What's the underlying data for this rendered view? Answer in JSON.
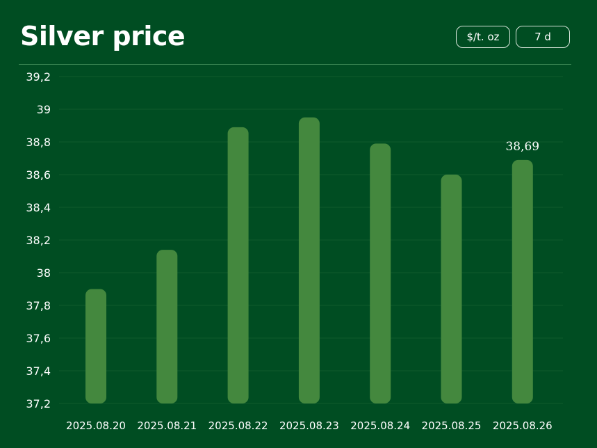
{
  "header": {
    "title": "Silver price",
    "unit_chip": "$/t. oz",
    "range_chip": "7 d"
  },
  "colors": {
    "background": "#004d22",
    "bar": "#44883e",
    "gridline": "#0f5a2c",
    "text": "#ffffff"
  },
  "chart_data": {
    "type": "bar",
    "title": "Silver price",
    "xlabel": "",
    "ylabel": "",
    "categories": [
      "2025.08.20",
      "2025.08.21",
      "2025.08.22",
      "2025.08.23",
      "2025.08.24",
      "2025.08.25",
      "2025.08.26"
    ],
    "values": [
      37.9,
      38.14,
      38.89,
      38.95,
      38.79,
      38.6,
      38.69
    ],
    "ylim": [
      37.2,
      39.2
    ],
    "yticks": [
      37.2,
      37.4,
      37.6,
      37.8,
      38,
      38.2,
      38.4,
      38.6,
      38.8,
      39,
      39.2
    ],
    "ytick_labels": [
      "37,2",
      "37,4",
      "37,6",
      "37,8",
      "38",
      "38,2",
      "38,4",
      "38,6",
      "38,8",
      "39",
      "39,2"
    ],
    "annotations": [
      {
        "category": "2025.08.26",
        "label": "38,69"
      }
    ],
    "grid": true,
    "legend": "none"
  }
}
